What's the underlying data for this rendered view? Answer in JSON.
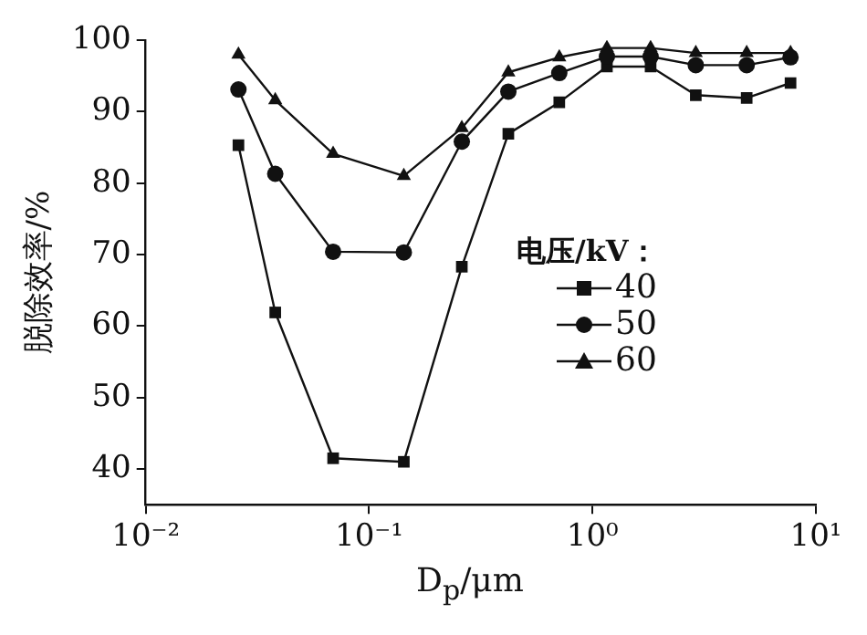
{
  "chart_data": {
    "type": "line",
    "xlabel": "D$_{p}$/μm",
    "ylabel": "脱除效率/%",
    "legend_title": "电压/kV：",
    "x": [
      0.026,
      0.038,
      0.069,
      0.143,
      0.26,
      0.42,
      0.71,
      1.16,
      1.82,
      2.9,
      4.9,
      7.7
    ],
    "series": [
      {
        "name": "40",
        "color": "#111111",
        "marker": "square",
        "values": [
          85.3,
          61.9,
          41.5,
          41,
          68.3,
          86.9,
          91.3,
          96.3,
          96.3,
          92.3,
          91.9,
          94
        ]
      },
      {
        "name": "50",
        "color": "#111111",
        "marker": "circle",
        "values": [
          93.1,
          81.3,
          70.4,
          70.3,
          85.8,
          92.8,
          95.4,
          97.7,
          97.7,
          96.5,
          96.5,
          97.6
        ]
      },
      {
        "name": "60",
        "color": "#111111",
        "marker": "triangle",
        "values": [
          98,
          91.6,
          84.1,
          81,
          87.7,
          95.5,
          97.6,
          98.9,
          98.9,
          98.2,
          98.2,
          98.2
        ]
      }
    ],
    "log": "x",
    "xlim": [
      0.01,
      10
    ],
    "xticks": [
      {
        "value": 0.01,
        "label": "10⁻²"
      },
      {
        "value": 0.1,
        "label": "10⁻¹"
      },
      {
        "value": 1,
        "label": "10⁰"
      },
      {
        "value": 10,
        "label": "10¹"
      }
    ],
    "ylim": [
      35,
      100
    ],
    "yticks": [
      40,
      50,
      60,
      70,
      80,
      90,
      100
    ],
    "grid": false,
    "legend": "right",
    "line_style": "solid"
  }
}
